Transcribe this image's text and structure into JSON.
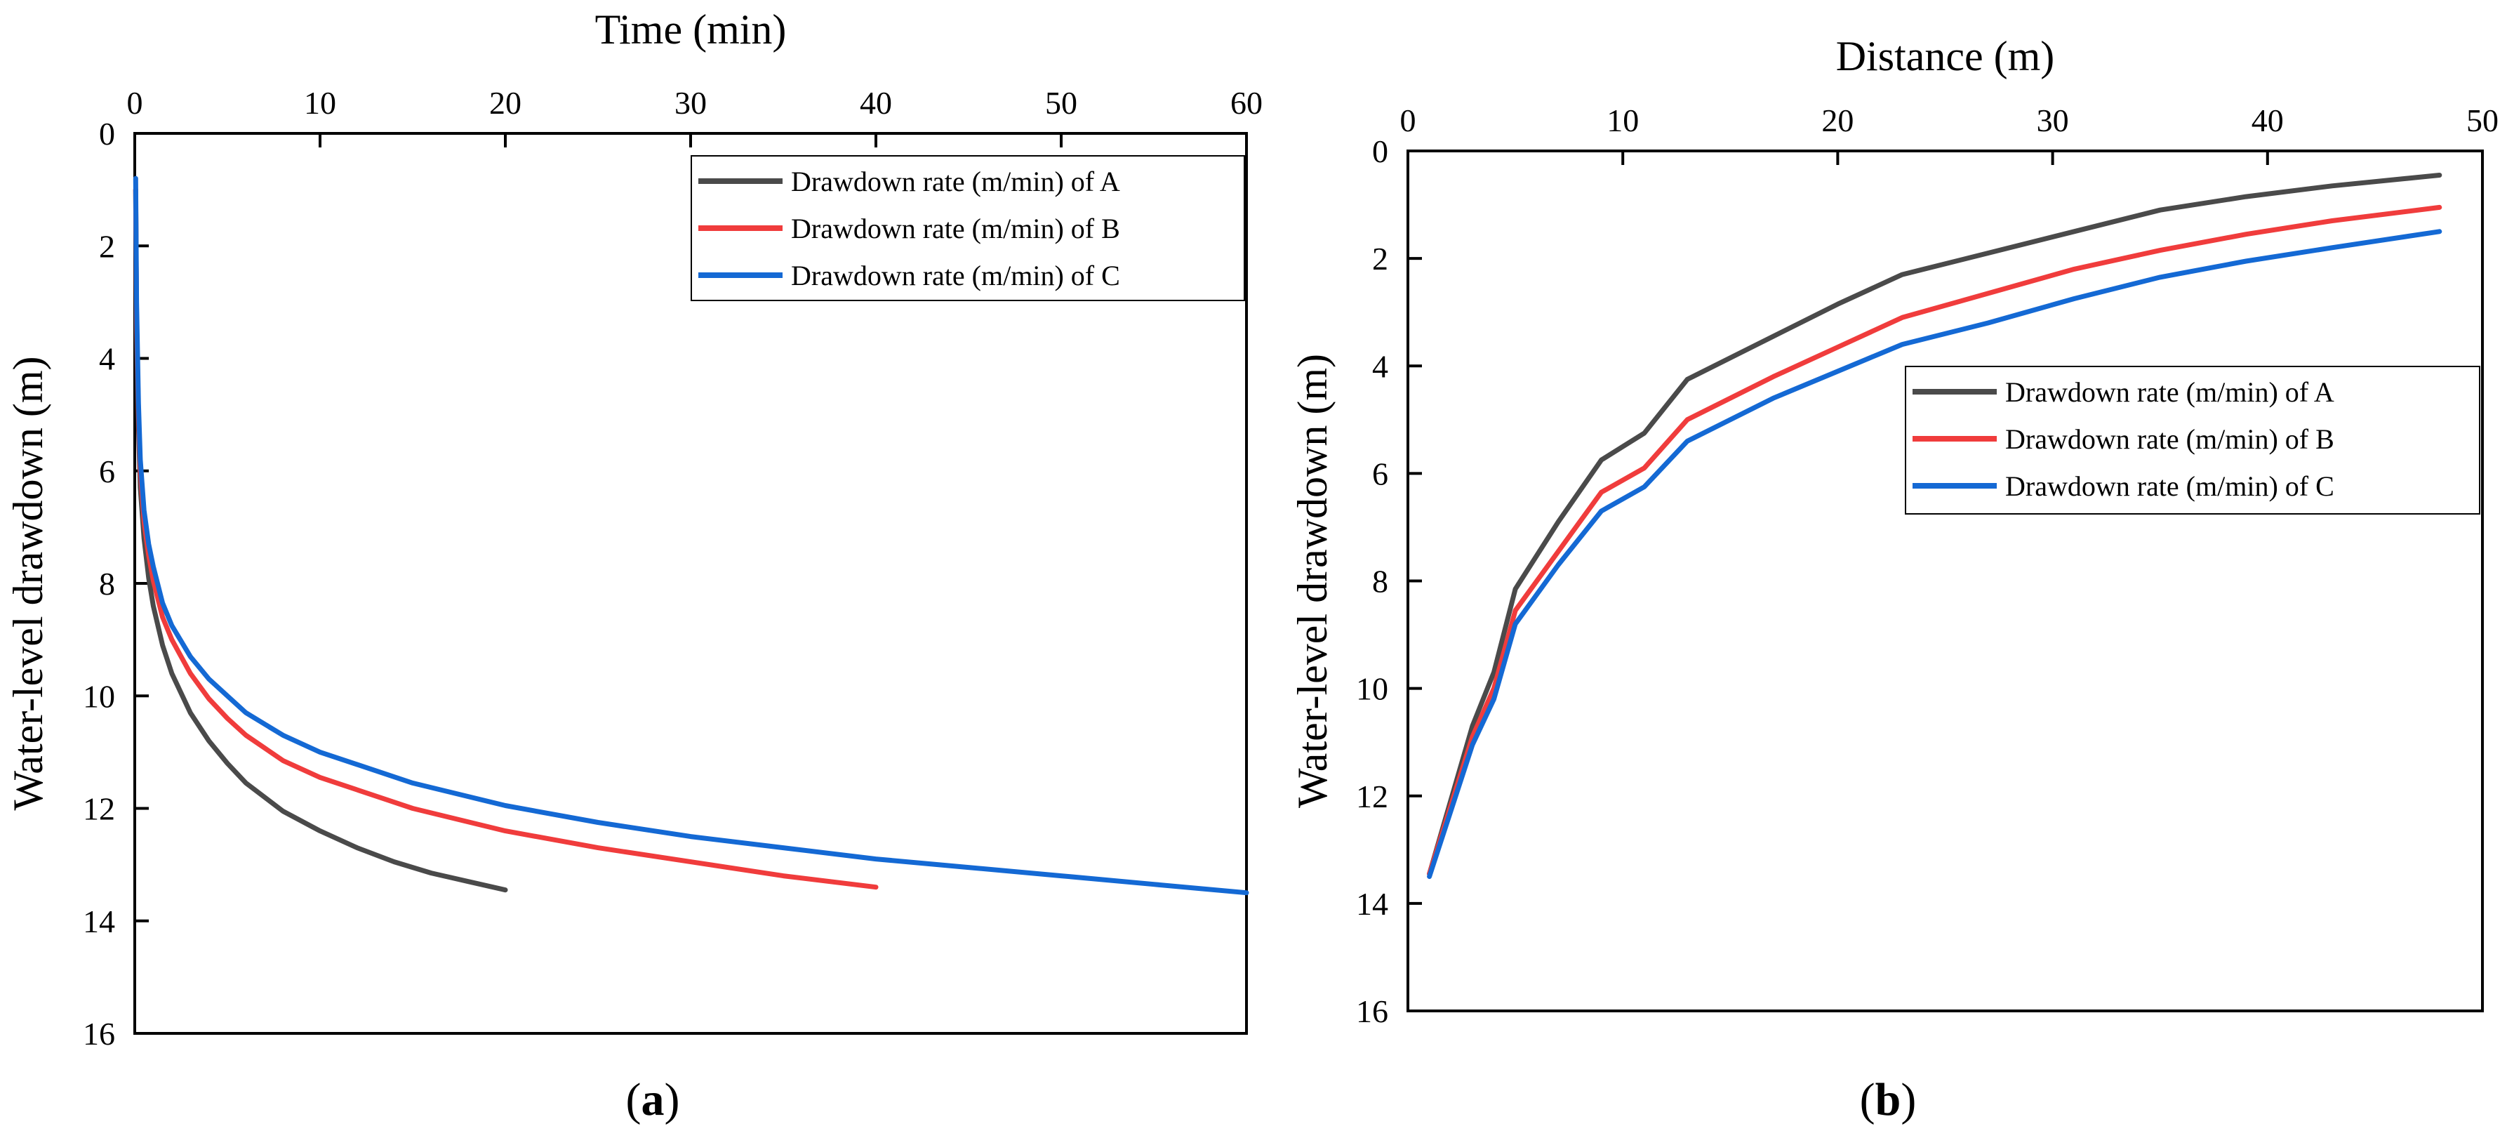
{
  "chart_data": [
    {
      "type": "line",
      "panel_label": "(a)",
      "xlabel": "Time (min)",
      "ylabel": "Water-level drawdown (m)",
      "x_axis_position": "top",
      "y_axis_inverted": true,
      "xlim": [
        0,
        60
      ],
      "ylim": [
        0,
        16
      ],
      "xticks": [
        "0",
        "10",
        "20",
        "30",
        "40",
        "50",
        "60"
      ],
      "yticks": [
        "0",
        "2",
        "4",
        "6",
        "8",
        "10",
        "12",
        "14",
        "16"
      ],
      "grid": false,
      "legend_position": "top-right",
      "series": [
        {
          "name": "Drawdown rate (m/min) of A",
          "color": "#4a4a4a",
          "x": [
            0.05,
            0.1,
            0.2,
            0.3,
            0.5,
            0.75,
            1,
            1.5,
            2,
            3,
            4,
            5,
            6,
            8,
            10,
            12,
            14,
            16,
            18,
            20
          ],
          "y": [
            1.0,
            3.5,
            5.2,
            6.3,
            7.2,
            7.9,
            8.4,
            9.1,
            9.6,
            10.3,
            10.8,
            11.2,
            11.55,
            12.05,
            12.4,
            12.7,
            12.95,
            13.15,
            13.3,
            13.45
          ]
        },
        {
          "name": "Drawdown rate (m/min) of B",
          "color": "#f03c3c",
          "x": [
            0.05,
            0.1,
            0.2,
            0.3,
            0.5,
            0.75,
            1,
            1.5,
            2,
            3,
            4,
            5,
            6,
            8,
            10,
            15,
            20,
            25,
            30,
            35,
            40
          ],
          "y": [
            1.0,
            3.3,
            5.0,
            6.0,
            6.9,
            7.5,
            7.95,
            8.6,
            9.0,
            9.6,
            10.05,
            10.4,
            10.7,
            11.15,
            11.45,
            12.0,
            12.4,
            12.7,
            12.95,
            13.2,
            13.4
          ]
        },
        {
          "name": "Drawdown rate (m/min) of C",
          "color": "#1469d4",
          "x": [
            0.05,
            0.1,
            0.2,
            0.3,
            0.5,
            0.75,
            1,
            1.5,
            2,
            3,
            4,
            5,
            6,
            8,
            10,
            15,
            20,
            25,
            30,
            35,
            40,
            45,
            50,
            55,
            60
          ],
          "y": [
            0.8,
            3.0,
            4.8,
            5.8,
            6.7,
            7.3,
            7.7,
            8.35,
            8.75,
            9.3,
            9.7,
            10.0,
            10.3,
            10.7,
            11.0,
            11.55,
            11.95,
            12.25,
            12.5,
            12.7,
            12.9,
            13.05,
            13.2,
            13.35,
            13.5
          ]
        }
      ]
    },
    {
      "type": "line",
      "panel_label": "(b)",
      "xlabel": "Distance (m)",
      "ylabel": "Water-level drawdown (m)",
      "x_axis_position": "top",
      "y_axis_inverted": true,
      "xlim": [
        0,
        50
      ],
      "ylim": [
        0,
        16
      ],
      "xticks": [
        "0",
        "10",
        "20",
        "30",
        "40",
        "50"
      ],
      "yticks": [
        "0",
        "2",
        "4",
        "6",
        "8",
        "10",
        "12",
        "14",
        "16"
      ],
      "grid": false,
      "legend_position": "center-right",
      "series": [
        {
          "name": "Drawdown rate (m/min) of A",
          "color": "#4a4a4a",
          "x": [
            1,
            3,
            4,
            5,
            7,
            9,
            11,
            13,
            17,
            20,
            23,
            27,
            31,
            35,
            39,
            43,
            48
          ],
          "y": [
            13.45,
            10.7,
            9.7,
            8.15,
            6.9,
            5.75,
            5.25,
            4.25,
            3.45,
            2.85,
            2.3,
            1.9,
            1.5,
            1.1,
            0.85,
            0.65,
            0.45
          ]
        },
        {
          "name": "Drawdown rate (m/min) of B",
          "color": "#f03c3c",
          "x": [
            1,
            3,
            4,
            5,
            7,
            9,
            11,
            13,
            17,
            20,
            23,
            27,
            31,
            35,
            39,
            43,
            48
          ],
          "y": [
            13.45,
            10.9,
            10.0,
            8.55,
            7.45,
            6.35,
            5.9,
            5.0,
            4.2,
            3.65,
            3.1,
            2.65,
            2.2,
            1.85,
            1.55,
            1.3,
            1.05
          ]
        },
        {
          "name": "Drawdown rate (m/min) of C",
          "color": "#1469d4",
          "x": [
            1,
            3,
            4,
            5,
            7,
            9,
            11,
            13,
            17,
            20,
            23,
            27,
            31,
            35,
            39,
            43,
            48
          ],
          "y": [
            13.5,
            11.05,
            10.2,
            8.8,
            7.7,
            6.7,
            6.25,
            5.4,
            4.6,
            4.1,
            3.6,
            3.2,
            2.75,
            2.35,
            2.05,
            1.8,
            1.5
          ]
        }
      ]
    }
  ]
}
